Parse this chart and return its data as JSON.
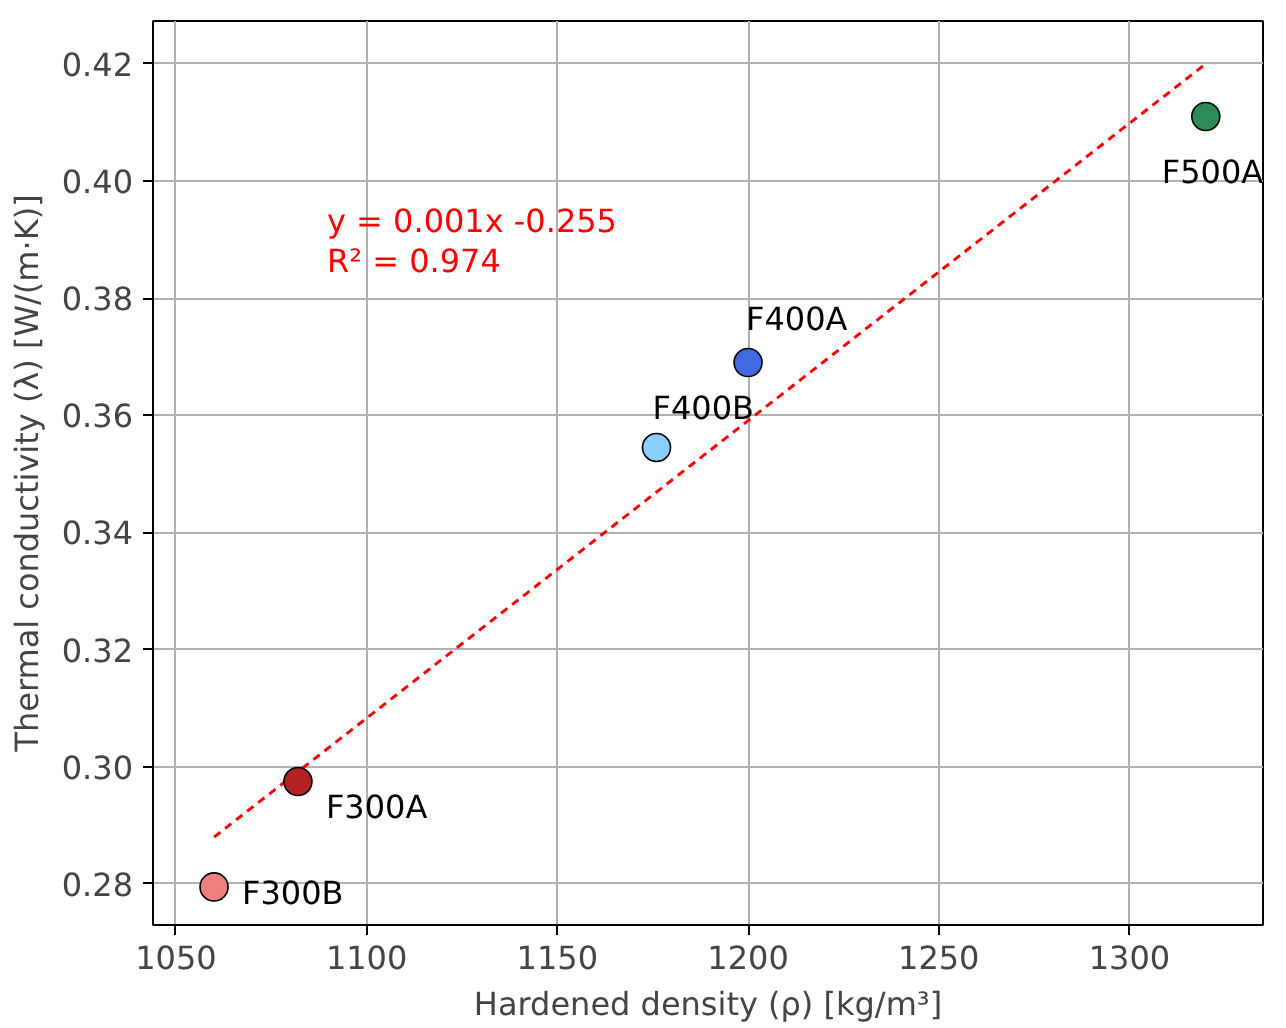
{
  "chart_data": {
    "type": "scatter",
    "xlabel": "Hardened density (ρ) [kg/m³]",
    "ylabel": "Thermal conductivity (λ) [W/(m·K)]",
    "xlim": [
      1044,
      1335
    ],
    "ylim": [
      0.273,
      0.4273
    ],
    "xticks": [
      1050,
      1100,
      1150,
      1200,
      1250,
      1300
    ],
    "yticks": [
      {
        "value": 0.28,
        "label": "0.28"
      },
      {
        "value": 0.3,
        "label": "0.30"
      },
      {
        "value": 0.32,
        "label": "0.32"
      },
      {
        "value": 0.34,
        "label": "0.34"
      },
      {
        "value": 0.36,
        "label": "0.36"
      },
      {
        "value": 0.38,
        "label": "0.38"
      },
      {
        "value": 0.4,
        "label": "0.40"
      },
      {
        "value": 0.42,
        "label": "0.42"
      }
    ],
    "grid": true,
    "series": [
      {
        "type": "line",
        "x": [
          1060,
          1320
        ],
        "values": [
          0.288,
          0.42
        ],
        "color": "#ff0000",
        "line_style": "dashed",
        "marker": "none"
      },
      {
        "x": [
          1060,
          1082,
          1176,
          1200,
          1320
        ],
        "values": [
          0.2795,
          0.2975,
          0.3545,
          0.369,
          0.411
        ],
        "colors": [
          "#f08080",
          "#b22222",
          "#87cefa",
          "#4169e1",
          "#2e8b57"
        ],
        "marker": "circle"
      }
    ],
    "annotations": [
      {
        "text": "F300B",
        "x": 1060,
        "y": 0.2795
      },
      {
        "text": "F300A",
        "x": 1082,
        "y": 0.2975
      },
      {
        "text": "F400B",
        "x": 1176,
        "y": 0.3545
      },
      {
        "text": "F400A",
        "x": 1200,
        "y": 0.369
      },
      {
        "text": "F500A",
        "x": 1320,
        "y": 0.411
      },
      "y = 0.001x -0.255",
      "R² = 0.974"
    ]
  }
}
